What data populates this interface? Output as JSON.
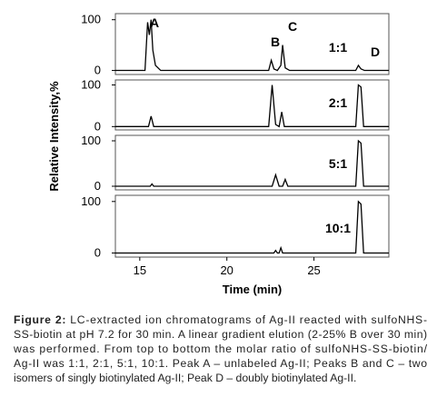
{
  "chart_data": [
    {
      "type": "line",
      "label": "1:1",
      "annotations": [
        "A",
        "B",
        "C",
        "D"
      ],
      "x": [
        13.6,
        15.3,
        15.45,
        15.55,
        15.65,
        15.75,
        15.9,
        16.2,
        22.4,
        22.55,
        22.7,
        22.9,
        23.1,
        23.2,
        23.35,
        23.6,
        27.4,
        27.55,
        27.7,
        27.9,
        29.3
      ],
      "series": [
        {
          "color": "#000000",
          "values": [
            0,
            0,
            95,
            70,
            100,
            40,
            10,
            0,
            0,
            20,
            3,
            0,
            10,
            50,
            5,
            0,
            0,
            10,
            3,
            0,
            0
          ]
        }
      ],
      "xlim": [
        13.6,
        29.3
      ],
      "ylim": [
        -8,
        112
      ],
      "yticks": [
        0,
        100
      ]
    },
    {
      "type": "line",
      "label": "2:1",
      "x": [
        13.6,
        15.5,
        15.65,
        15.8,
        22.4,
        22.6,
        22.8,
        23.0,
        23.15,
        23.3,
        27.4,
        27.55,
        27.7,
        27.85,
        29.3
      ],
      "series": [
        {
          "color": "#000000",
          "values": [
            0,
            0,
            25,
            0,
            0,
            100,
            5,
            0,
            35,
            0,
            0,
            100,
            95,
            0,
            0
          ]
        }
      ],
      "xlim": [
        13.6,
        29.3
      ],
      "ylim": [
        -8,
        112
      ],
      "yticks": [
        0,
        100
      ]
    },
    {
      "type": "line",
      "label": "5:1",
      "x": [
        13.6,
        15.6,
        15.7,
        15.8,
        22.6,
        22.8,
        23.0,
        23.2,
        23.35,
        23.5,
        27.4,
        27.55,
        27.7,
        27.85,
        29.3
      ],
      "series": [
        {
          "color": "#000000",
          "values": [
            0,
            0,
            5,
            0,
            0,
            25,
            0,
            0,
            15,
            0,
            0,
            100,
            95,
            0,
            0
          ]
        }
      ],
      "xlim": [
        13.6,
        29.3
      ],
      "ylim": [
        -8,
        112
      ],
      "yticks": [
        0,
        100
      ]
    },
    {
      "type": "line",
      "label": "10:1",
      "x": [
        13.6,
        22.7,
        22.8,
        22.9,
        23.0,
        23.1,
        23.2,
        27.4,
        27.55,
        27.7,
        27.85,
        29.3
      ],
      "series": [
        {
          "color": "#000000",
          "values": [
            0,
            0,
            5,
            0,
            0,
            10,
            0,
            0,
            100,
            95,
            0,
            0
          ]
        }
      ],
      "xlim": [
        13.6,
        29.3
      ],
      "ylim": [
        -8,
        112
      ],
      "yticks": [
        0,
        100
      ],
      "xticks": [
        15,
        20,
        25
      ],
      "xlabel": "Time (min)"
    }
  ],
  "ylabel": "Relative Intensity,%",
  "caption": {
    "label": "Figure 2:",
    "lines": [
      " LC-extracted ion chromatograms of Ag-II reacted with sulfoNHS-",
      "SS-biotin at pH 7.2 for 30 min. A linear gradient elution (2-25% B over 30 min)",
      "was performed. From top to bottom the molar ratio of sulfoNHS-SS-biotin/",
      "Ag-II was 1:1, 2:1, 5:1, 10:1. Peak A – unlabeled Ag-II; Peaks B and C – two",
      "isomers of singly biotinylated Ag-II; Peak D – doubly biotinylated Ag-II."
    ]
  }
}
